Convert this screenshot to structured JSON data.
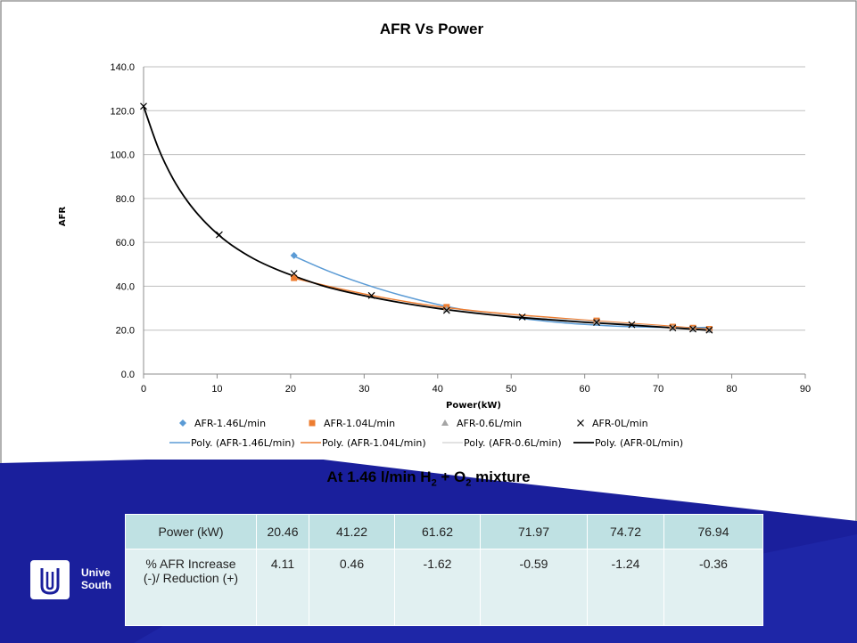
{
  "theme": {
    "navy": "#1a1f9c",
    "navy_light": "#2b33b8",
    "table_header": "#bfe1e3",
    "table_body": "#e1f0f1"
  },
  "chart_data": {
    "type": "scatter",
    "title": "AFR Vs Power",
    "xlabel": "Power(kW)",
    "ylabel": "AFR",
    "xlim": [
      0,
      90
    ],
    "ylim": [
      0,
      140
    ],
    "xticks": [
      0,
      10,
      20,
      30,
      40,
      50,
      60,
      70,
      80,
      90
    ],
    "yticks": [
      "0.0",
      "20.0",
      "40.0",
      "60.0",
      "80.0",
      "100.0",
      "120.0",
      "140.0"
    ],
    "grid": "horizontal",
    "legend_position": "bottom",
    "series": [
      {
        "name": "AFR-1.46L/min",
        "marker": "diamond",
        "color": "#5b9bd5",
        "x": [
          20.46,
          41.22,
          61.62,
          71.97,
          74.72,
          76.94
        ],
        "y": [
          54.0,
          30.3,
          24.0,
          21.3,
          20.8,
          20.2
        ]
      },
      {
        "name": "AFR-1.04L/min",
        "marker": "square",
        "color": "#ed7d31",
        "x": [
          20.46,
          41.22,
          61.62,
          71.97,
          74.72,
          76.94
        ],
        "y": [
          43.8,
          30.5,
          24.3,
          21.5,
          21.0,
          20.5
        ]
      },
      {
        "name": "AFR-0.6L/min",
        "marker": "triangle",
        "color": "#a5a5a5",
        "x": [
          41.22,
          61.62,
          71.97,
          74.72,
          76.94
        ],
        "y": [
          29.5,
          23.8,
          21.1,
          20.6,
          20.1
        ]
      },
      {
        "name": "AFR-0L/min",
        "marker": "x",
        "color": "#000000",
        "x": [
          0,
          10.3,
          20.46,
          31.0,
          41.22,
          51.5,
          61.62,
          66.4,
          71.97,
          74.72,
          76.94
        ],
        "y": [
          122.0,
          63.5,
          45.8,
          35.8,
          29.0,
          26.0,
          23.5,
          22.5,
          21.0,
          20.5,
          20.0
        ]
      }
    ],
    "trendlines": [
      {
        "name": "Poly. (AFR-1.46L/min)",
        "color": "#5b9bd5",
        "x": [
          20.46,
          25,
          30,
          35,
          40,
          45,
          50,
          55,
          60,
          65,
          70,
          75,
          77
        ],
        "y": [
          53.7,
          47.1,
          41.0,
          35.9,
          31.7,
          28.4,
          25.9,
          24.0,
          22.6,
          21.7,
          21.3,
          21.2,
          21.3
        ]
      },
      {
        "name": "Poly. (AFR-1.04L/min)",
        "color": "#ed7d31",
        "x": [
          20.46,
          25,
          30,
          35,
          40,
          45,
          50,
          55,
          60,
          65,
          70,
          75,
          77
        ],
        "y": [
          43.7,
          40.1,
          36.5,
          33.4,
          30.8,
          28.8,
          27.2,
          25.9,
          24.6,
          23.4,
          22.2,
          20.9,
          20.4
        ]
      },
      {
        "name": "Poly. (AFR-0.6L/min)",
        "color": "#d9d9d9",
        "x": [
          41.22,
          50,
          60,
          70,
          77
        ],
        "y": [
          29.5,
          26.6,
          24.2,
          21.8,
          20.1
        ]
      },
      {
        "name": "Poly. (AFR-0L/min)",
        "color": "#000000",
        "x": [
          0,
          2,
          4,
          6,
          8,
          10,
          12,
          15,
          18,
          21,
          25,
          30,
          35,
          40,
          45,
          50,
          55,
          60,
          65,
          70,
          75,
          77
        ],
        "y": [
          122.0,
          103.0,
          89.0,
          78.6,
          70.5,
          64.0,
          58.7,
          52.5,
          47.8,
          44.0,
          39.6,
          35.7,
          32.5,
          29.9,
          27.8,
          26.1,
          24.8,
          23.6,
          22.6,
          21.5,
          20.4,
          19.9
        ]
      }
    ]
  },
  "subtitle": {
    "prefix": "At 1.46 l/min H",
    "sub1": "2",
    "mid": " + O",
    "sub2": "2",
    "suffix": " mixture"
  },
  "table": {
    "row_header_1": "Power (kW)",
    "row_header_2": "% AFR Increase (-)/ Reduction (+)",
    "powers": [
      "20.46",
      "41.22",
      "61.62",
      "71.97",
      "74.72",
      "76.94"
    ],
    "afr_change": [
      "4.11",
      "0.46",
      "-1.62",
      "-0.59",
      "-1.24",
      "-0.36"
    ]
  },
  "logo": {
    "line1": "Unive",
    "line2": "South"
  }
}
